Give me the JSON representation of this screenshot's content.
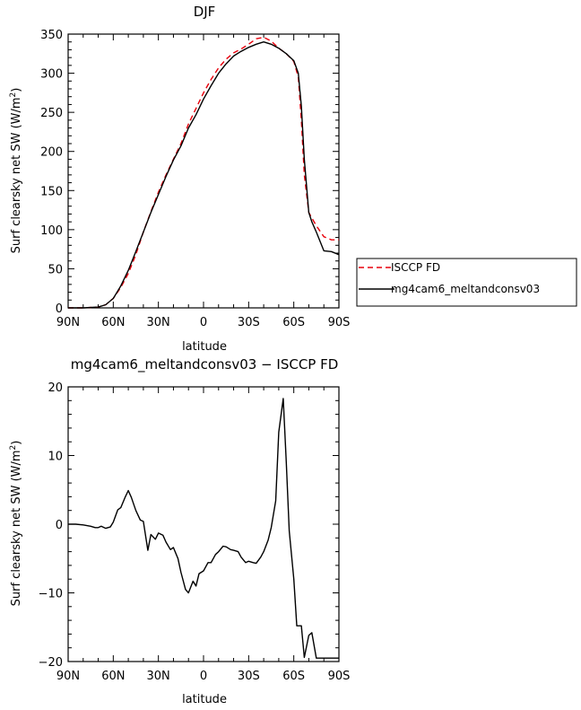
{
  "chart_data": [
    {
      "type": "line",
      "title": "DJF",
      "xlabel": "latitude",
      "ylabel": "Surf clearsky net SW (W/m²)",
      "ylabel_main": "Surf clearsky net SW (W/m",
      "ylabel_sup": "2",
      "ylabel_end": ")",
      "xlim": [
        -90,
        90
      ],
      "ylim": [
        0,
        350
      ],
      "xticks": [
        -90,
        -60,
        -30,
        0,
        30,
        60,
        90
      ],
      "xtick_labels": [
        "90N",
        "60N",
        "30N",
        "0",
        "30S",
        "60S",
        "90S"
      ],
      "yticks": [
        0,
        50,
        100,
        150,
        200,
        250,
        300,
        350
      ],
      "ytick_labels": [
        "0",
        "50",
        "100",
        "150",
        "200",
        "250",
        "300",
        "350"
      ],
      "legend": {
        "placement": "right, outside"
      },
      "series": [
        {
          "name": "ISCCP FD",
          "color": "#e8000b",
          "dash": "dashed",
          "x": [
            -90,
            -80,
            -70,
            -65,
            -60,
            -55,
            -50,
            -45,
            -40,
            -35,
            -30,
            -25,
            -20,
            -15,
            -10,
            -5,
            0,
            5,
            10,
            15,
            20,
            25,
            30,
            35,
            40,
            45,
            50,
            55,
            60,
            63,
            65,
            67,
            70,
            72,
            75,
            80,
            85,
            90
          ],
          "values": [
            0,
            0,
            1,
            4,
            12,
            26,
            44,
            68,
            97,
            123,
            148,
            170,
            190,
            210,
            235,
            255,
            275,
            292,
            307,
            318,
            326,
            331,
            337,
            344,
            346,
            341,
            332,
            325,
            315,
            295,
            240,
            170,
            122,
            115,
            105,
            91,
            87,
            87
          ]
        },
        {
          "name": "mg4cam6_meltandconsv03",
          "color": "#000000",
          "dash": "solid",
          "x": [
            -90,
            -80,
            -70,
            -65,
            -60,
            -55,
            -50,
            -45,
            -40,
            -35,
            -30,
            -25,
            -20,
            -15,
            -10,
            -5,
            0,
            5,
            10,
            15,
            20,
            25,
            30,
            35,
            40,
            45,
            50,
            55,
            60,
            63,
            65,
            67,
            70,
            72,
            75,
            80,
            85,
            90
          ],
          "values": [
            0,
            0,
            1,
            4,
            12,
            28,
            48,
            72,
            97,
            122,
            145,
            168,
            189,
            207,
            230,
            247,
            267,
            284,
            300,
            312,
            322,
            328,
            333,
            337,
            340,
            337,
            332,
            325,
            316,
            300,
            258,
            190,
            122,
            110,
            97,
            73,
            72,
            68
          ]
        }
      ]
    },
    {
      "type": "line",
      "title": "mg4cam6_meltandconsv03 − ISCCP FD",
      "xlabel": "latitude",
      "ylabel": "Surf clearsky net SW (W/m²)",
      "ylabel_main": "Surf clearsky net SW (W/m",
      "ylabel_sup": "2",
      "ylabel_end": ")",
      "xlim": [
        -90,
        90
      ],
      "ylim": [
        -20,
        20
      ],
      "xticks": [
        -90,
        -60,
        -30,
        0,
        30,
        60,
        90
      ],
      "xtick_labels": [
        "90N",
        "60N",
        "30N",
        "0",
        "30S",
        "60S",
        "90S"
      ],
      "yticks": [
        -20,
        -10,
        0,
        10,
        20
      ],
      "ytick_labels": [
        "−20",
        "−10",
        "0",
        "10",
        "20"
      ],
      "series": [
        {
          "color": "#000000",
          "dash": "solid",
          "x": [
            -90,
            -85,
            -80,
            -75,
            -72,
            -70,
            -68,
            -65,
            -62,
            -60,
            -57,
            -55,
            -52,
            -50,
            -48,
            -45,
            -42,
            -40,
            -37,
            -35,
            -32,
            -30,
            -27,
            -25,
            -22,
            -20,
            -17,
            -15,
            -12,
            -10,
            -7,
            -5,
            -3,
            0,
            3,
            5,
            8,
            10,
            13,
            15,
            18,
            20,
            23,
            25,
            28,
            30,
            33,
            35,
            38,
            40,
            43,
            45,
            48,
            50,
            53,
            55,
            57,
            60,
            62,
            65,
            67,
            70,
            72,
            75,
            77,
            80,
            83,
            85,
            88,
            90
          ],
          "values": [
            0,
            0,
            -0.1,
            -0.3,
            -0.5,
            -0.5,
            -0.3,
            -0.6,
            -0.4,
            0.3,
            2.1,
            2.4,
            4.0,
            4.9,
            3.9,
            2.0,
            0.6,
            0.4,
            -3.8,
            -1.5,
            -2.2,
            -1.3,
            -1.6,
            -2.6,
            -3.7,
            -3.4,
            -5.0,
            -7.0,
            -9.5,
            -10.0,
            -8.3,
            -9.0,
            -7.2,
            -6.8,
            -5.6,
            -5.6,
            -4.4,
            -4.0,
            -3.2,
            -3.3,
            -3.7,
            -3.8,
            -4.0,
            -4.8,
            -5.6,
            -5.4,
            -5.6,
            -5.7,
            -4.8,
            -4.0,
            -2.3,
            -0.5,
            3.4,
            13.4,
            18.3,
            9.0,
            -1.0,
            -8.0,
            -14.8,
            -14.8,
            -19.4,
            -16.2,
            -15.8,
            -19.5,
            -19.5,
            -19.5,
            -19.5,
            -19.5,
            -19.5,
            -19.5
          ]
        }
      ]
    }
  ]
}
